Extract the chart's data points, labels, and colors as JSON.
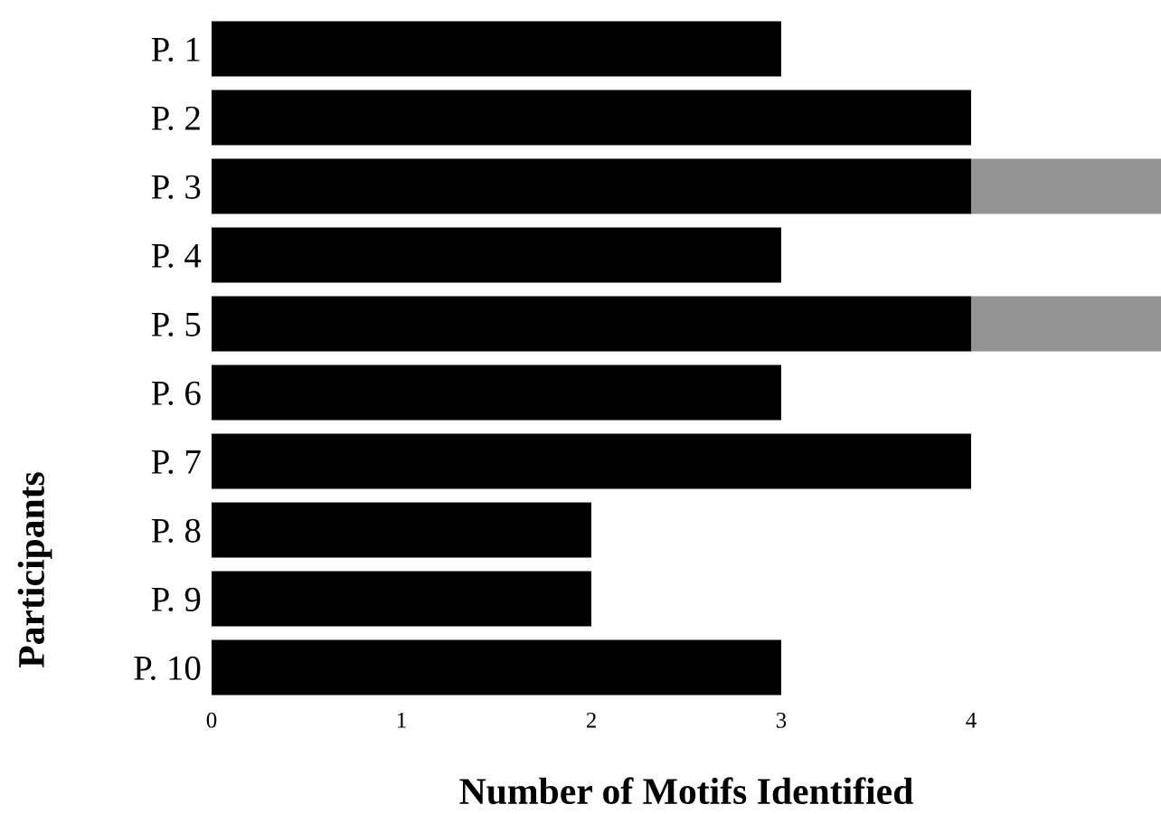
{
  "chart_data": {
    "type": "bar",
    "orientation": "horizontal",
    "stacked": true,
    "xlabel": "Number of Motifs Identified",
    "ylabel": "Participants",
    "categories": [
      "P. 1",
      "P. 2",
      "P. 3",
      "P. 4",
      "P. 5",
      "P. 6",
      "P. 7",
      "P. 8",
      "P. 9",
      "P. 10"
    ],
    "series": [
      {
        "color": "#000000",
        "values": [
          3,
          4,
          4,
          3,
          4,
          3,
          4,
          2,
          2,
          3
        ]
      },
      {
        "color": "#939393",
        "values": [
          null,
          null,
          1,
          null,
          1,
          null,
          null,
          null,
          null,
          null
        ]
      }
    ],
    "xlim": [
      0,
      5
    ],
    "xticks": [
      0,
      1,
      2,
      3,
      4
    ],
    "grid": false,
    "legend": false
  }
}
